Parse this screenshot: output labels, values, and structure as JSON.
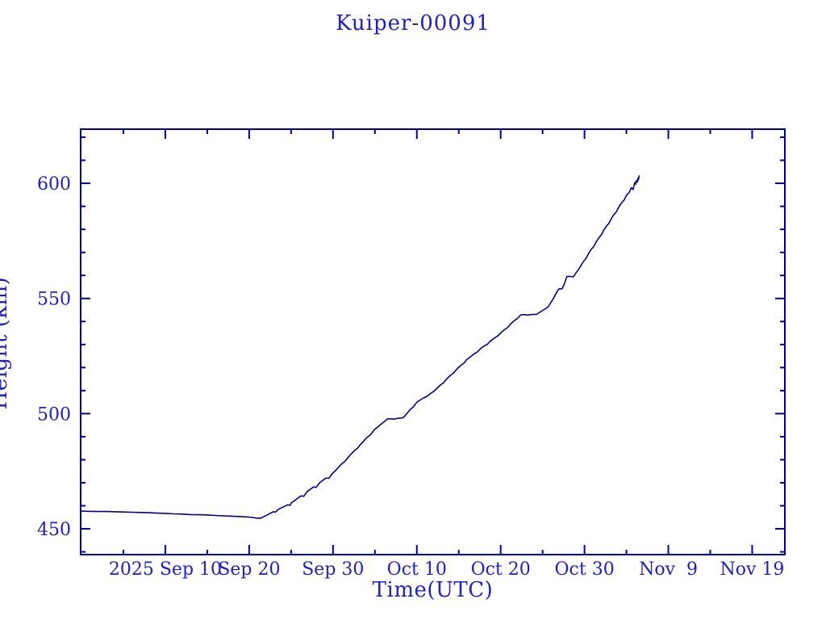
{
  "page": {
    "background": "#ffffff"
  },
  "chart_data": {
    "type": "line",
    "title": "Kuiper-00091",
    "xlabel": "Time(UTC)",
    "ylabel": "Height (km)",
    "x_unit": "days since 2025-09-01 00:00 UTC",
    "xlim": [
      -1.1,
      82.9
    ],
    "ylim": [
      438.8,
      623.5
    ],
    "grid": false,
    "legend": "none",
    "line_color": "#00008b",
    "text_color": "#2121bb",
    "x_major_ticks": [
      {
        "d": 9,
        "label": "2025 Sep 10"
      },
      {
        "d": 19,
        "label": "Sep 20"
      },
      {
        "d": 29,
        "label": "Sep 30"
      },
      {
        "d": 39,
        "label": "Oct 10"
      },
      {
        "d": 49,
        "label": "Oct 20"
      },
      {
        "d": 59,
        "label": "Oct 30"
      },
      {
        "d": 69,
        "label": "Nov  9"
      },
      {
        "d": 79,
        "label": "Nov 19"
      }
    ],
    "x_minor_ticks": [
      4,
      14,
      24,
      34,
      44,
      54,
      64,
      74
    ],
    "y_major_ticks": [
      {
        "v": 450,
        "label": "450"
      },
      {
        "v": 500,
        "label": "500"
      },
      {
        "v": 550,
        "label": "550"
      },
      {
        "v": 600,
        "label": "600"
      }
    ],
    "y_minor_ticks": [
      440,
      460,
      470,
      480,
      490,
      510,
      520,
      530,
      540,
      560,
      570,
      580,
      590,
      610,
      620
    ],
    "series": [
      {
        "name": "height",
        "points": [
          [
            -1.1,
            457.7
          ],
          [
            0,
            457.6
          ],
          [
            1,
            457.5
          ],
          [
            2,
            457.5
          ],
          [
            3,
            457.4
          ],
          [
            4,
            457.3
          ],
          [
            5,
            457.2
          ],
          [
            6,
            457.1
          ],
          [
            7,
            457.0
          ],
          [
            8,
            456.8
          ],
          [
            9,
            456.7
          ],
          [
            10,
            456.5
          ],
          [
            11,
            456.4
          ],
          [
            12,
            456.2
          ],
          [
            13,
            456.1
          ],
          [
            14,
            456.0
          ],
          [
            15,
            455.8
          ],
          [
            16,
            455.6
          ],
          [
            17,
            455.5
          ],
          [
            18,
            455.3
          ],
          [
            19,
            455.1
          ],
          [
            19.5,
            454.9
          ],
          [
            19.9,
            454.6
          ],
          [
            20.1,
            454.7
          ],
          [
            20.3,
            454.5
          ],
          [
            20.7,
            455.2
          ],
          [
            21.1,
            455.9
          ],
          [
            21.5,
            456.7
          ],
          [
            21.9,
            457.4
          ],
          [
            22.1,
            457.2
          ],
          [
            22.5,
            458.5
          ],
          [
            22.9,
            459.2
          ],
          [
            23.3,
            459.9
          ],
          [
            23.6,
            460.4
          ],
          [
            23.9,
            460.2
          ],
          [
            24,
            461.2
          ],
          [
            24.4,
            462.2
          ],
          [
            24.8,
            463.3
          ],
          [
            25.2,
            464.3
          ],
          [
            25.5,
            464.1
          ],
          [
            25.9,
            466.1
          ],
          [
            26.3,
            467.2
          ],
          [
            26.7,
            468.2
          ],
          [
            27,
            468.0
          ],
          [
            27.4,
            470.0
          ],
          [
            27.8,
            471.1
          ],
          [
            28.2,
            472.1
          ],
          [
            28.5,
            471.9
          ],
          [
            28.9,
            473.9
          ],
          [
            29.3,
            475.3
          ],
          [
            29.7,
            476.9
          ],
          [
            30.1,
            478.4
          ],
          [
            30.4,
            479.2
          ],
          [
            30.8,
            481.0
          ],
          [
            31.2,
            482.6
          ],
          [
            31.6,
            484.1
          ],
          [
            31.9,
            484.9
          ],
          [
            32.3,
            486.7
          ],
          [
            32.7,
            488.3
          ],
          [
            33.1,
            489.8
          ],
          [
            33.4,
            490.6
          ],
          [
            33.8,
            492.4
          ],
          [
            34,
            493.2
          ],
          [
            34.4,
            494.4
          ],
          [
            34.8,
            495.6
          ],
          [
            35.2,
            496.8
          ],
          [
            35.5,
            497.7
          ],
          [
            35.9,
            497.8
          ],
          [
            36.3,
            497.6
          ],
          [
            36.7,
            498.0
          ],
          [
            37.1,
            498.1
          ],
          [
            37.4,
            498.3
          ],
          [
            37.8,
            500.0
          ],
          [
            38.2,
            501.7
          ],
          [
            38.6,
            503.0
          ],
          [
            39,
            505.0
          ],
          [
            39.4,
            505.9
          ],
          [
            39.8,
            506.8
          ],
          [
            40.2,
            507.5
          ],
          [
            40.6,
            508.7
          ],
          [
            41,
            509.6
          ],
          [
            41.4,
            511.0
          ],
          [
            41.8,
            512.4
          ],
          [
            42.2,
            513.5
          ],
          [
            42.6,
            515.2
          ],
          [
            43,
            516.6
          ],
          [
            43.4,
            517.7
          ],
          [
            43.8,
            519.4
          ],
          [
            44.2,
            520.8
          ],
          [
            44.6,
            521.9
          ],
          [
            45,
            523.6
          ],
          [
            45.4,
            524.7
          ],
          [
            45.8,
            525.9
          ],
          [
            46.2,
            526.7
          ],
          [
            46.6,
            528.2
          ],
          [
            47,
            529.3
          ],
          [
            47.4,
            530.1
          ],
          [
            47.8,
            531.6
          ],
          [
            48.2,
            532.7
          ],
          [
            48.6,
            533.6
          ],
          [
            49,
            535.0
          ],
          [
            49.4,
            536.3
          ],
          [
            49.8,
            537.3
          ],
          [
            50.2,
            539.0
          ],
          [
            50.6,
            540.3
          ],
          [
            51,
            541.3
          ],
          [
            51.4,
            542.9
          ],
          [
            51.8,
            543.0
          ],
          [
            52.2,
            542.8
          ],
          [
            52.6,
            543.0
          ],
          [
            53,
            543.1
          ],
          [
            53.3,
            543.1
          ],
          [
            53.7,
            544.1
          ],
          [
            54.1,
            545.0
          ],
          [
            54.4,
            545.7
          ],
          [
            54.7,
            546.5
          ],
          [
            55,
            548.3
          ],
          [
            55.3,
            550.1
          ],
          [
            55.6,
            552.1
          ],
          [
            55.9,
            554.0
          ],
          [
            56.1,
            554.2
          ],
          [
            56.3,
            554.1
          ],
          [
            56.6,
            556.4
          ],
          [
            56.9,
            559.5
          ],
          [
            57.2,
            559.6
          ],
          [
            57.5,
            559.4
          ],
          [
            57.7,
            559.5
          ],
          [
            58,
            561.2
          ],
          [
            58.3,
            562.5
          ],
          [
            58.6,
            564.5
          ],
          [
            58.9,
            566.2
          ],
          [
            59.2,
            567.5
          ],
          [
            59.5,
            569.6
          ],
          [
            59.8,
            571.3
          ],
          [
            60.1,
            572.5
          ],
          [
            60.4,
            574.6
          ],
          [
            60.7,
            576.3
          ],
          [
            61,
            577.6
          ],
          [
            61.3,
            579.7
          ],
          [
            61.6,
            581.3
          ],
          [
            61.9,
            582.6
          ],
          [
            62.2,
            584.7
          ],
          [
            62.5,
            586.4
          ],
          [
            62.8,
            587.6
          ],
          [
            63.1,
            589.7
          ],
          [
            63.4,
            591.4
          ],
          [
            63.7,
            592.6
          ],
          [
            64,
            594.8
          ],
          [
            64.3,
            595.9
          ],
          [
            64.6,
            598.1
          ],
          [
            64.8,
            597.3
          ],
          [
            64.9,
            599.0
          ],
          [
            65,
            600.4
          ],
          [
            65.1,
            599.6
          ],
          [
            65.2,
            601.2
          ],
          [
            65.3,
            600.5
          ],
          [
            65.4,
            602.3
          ],
          [
            65.45,
            601.6
          ],
          [
            65.5,
            603.2
          ]
        ]
      }
    ]
  }
}
